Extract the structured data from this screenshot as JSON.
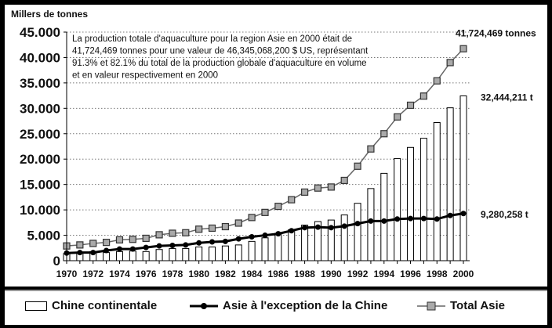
{
  "chart_data": {
    "type": "bar",
    "ylabel": "Millers de tonnes",
    "ylim": [
      0,
      45000
    ],
    "yticks": [
      "0",
      "5.000",
      "10.000",
      "15.000",
      "20.000",
      "25.000",
      "30.000",
      "35.000",
      "40.000",
      "45.000"
    ],
    "ytick_values": [
      0,
      5000,
      10000,
      15000,
      20000,
      25000,
      30000,
      35000,
      40000,
      45000
    ],
    "xticks": [
      "1970",
      "1972",
      "1974",
      "1976",
      "1978",
      "1980",
      "1982",
      "1984",
      "1986",
      "1988",
      "1990",
      "1992",
      "1994",
      "1996",
      "1998",
      "2000"
    ],
    "x": [
      1970,
      1971,
      1972,
      1973,
      1974,
      1975,
      1976,
      1977,
      1978,
      1979,
      1980,
      1981,
      1982,
      1983,
      1984,
      1985,
      1986,
      1987,
      1988,
      1989,
      1990,
      1991,
      1992,
      1993,
      1994,
      1995,
      1996,
      1997,
      1998,
      1999,
      2000
    ],
    "grid": true,
    "annotation": "La production totale d'aquaculture pour la region Asie en 2000 était de 41,724,469 tonnes pour une valeur de 46,345,068,200 $ US, représentant 91.3% et 82.1% du total de la production globale d'aquaculture en volume et en valeur respectivement en 2000",
    "annotation_lines": [
      "La production totale d'aquaculture pour la region Asie en 2000 était de",
      "41,724,469 tonnes pour une valeur de 46,345,068,200 $ US, représentant",
      "91.3% et 82.1% du total de la production globale d'aquaculture en volume",
      "et en valeur respectivement en 2000"
    ],
    "series": [
      {
        "name": "Chine continentale",
        "kind": "bar",
        "end_label": "32,444,211 t",
        "values": [
          1400,
          1500,
          1800,
          1600,
          1800,
          1900,
          1800,
          2200,
          2400,
          2400,
          2700,
          2700,
          2900,
          3100,
          3800,
          4500,
          5400,
          6100,
          7000,
          7700,
          8000,
          9000,
          11300,
          14200,
          17200,
          20100,
          22300,
          24100,
          27200,
          30100,
          32444
        ]
      },
      {
        "name": "Asie à l'exception de la Chine",
        "kind": "line-dot",
        "end_label": "9,280,258 t",
        "values": [
          1500,
          1600,
          1600,
          2000,
          2300,
          2300,
          2600,
          2900,
          3000,
          3100,
          3500,
          3700,
          3800,
          4300,
          4700,
          5000,
          5300,
          5900,
          6500,
          6600,
          6500,
          6800,
          7300,
          7800,
          7800,
          8200,
          8300,
          8300,
          8200,
          8900,
          9280
        ]
      },
      {
        "name": "Total Asie",
        "kind": "line-square",
        "end_label": "41,724,469 tonnes",
        "values": [
          2900,
          3100,
          3400,
          3600,
          4100,
          4200,
          4400,
          5100,
          5400,
          5500,
          6200,
          6400,
          6700,
          7400,
          8500,
          9500,
          10700,
          12000,
          13500,
          14300,
          14500,
          15800,
          18600,
          22000,
          25000,
          28300,
          30600,
          32400,
          35400,
          39000,
          41724
        ]
      }
    ],
    "legend_position": "bottom"
  }
}
